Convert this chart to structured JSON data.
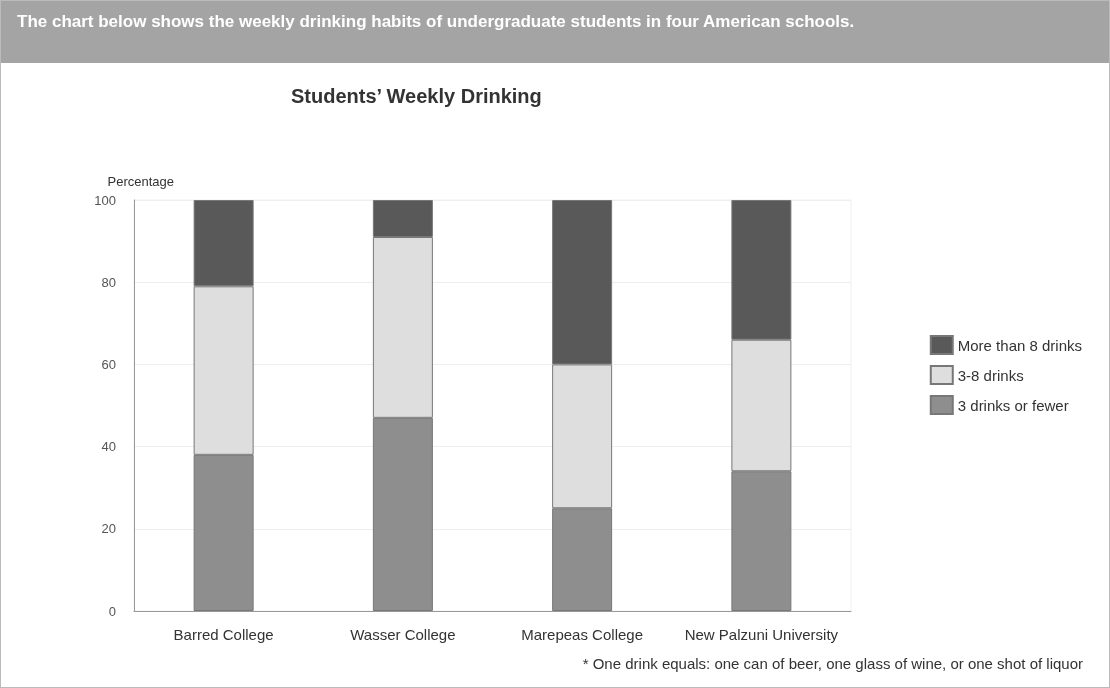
{
  "chart_data": {
    "type": "bar",
    "stacked": true,
    "subtitle": "The chart below shows the weekly drinking habits of undergraduate students in four American schools.",
    "title": "Students’ Weekly Drinking",
    "ylabel": "Percentage",
    "categories": [
      "Barred College",
      "Wasser College",
      "Marepeas College",
      "New Palzuni University"
    ],
    "series": [
      {
        "name": "3 drinks or fewer",
        "color": "#8e8e8e",
        "values": [
          38,
          47,
          25,
          34
        ]
      },
      {
        "name": "3-8 drinks",
        "color": "#dedede",
        "values": [
          41,
          44,
          35,
          32
        ]
      },
      {
        "name": "More than 8 drinks",
        "color": "#595959",
        "values": [
          21,
          9,
          40,
          34
        ]
      }
    ],
    "ylim": [
      0,
      100
    ],
    "yticks": [
      0,
      20,
      40,
      60,
      80,
      100
    ],
    "grid": "y",
    "legend": "right",
    "annotations": [
      "* One drink equals: one can of beer, one glass of wine, or one shot of liquor"
    ]
  }
}
